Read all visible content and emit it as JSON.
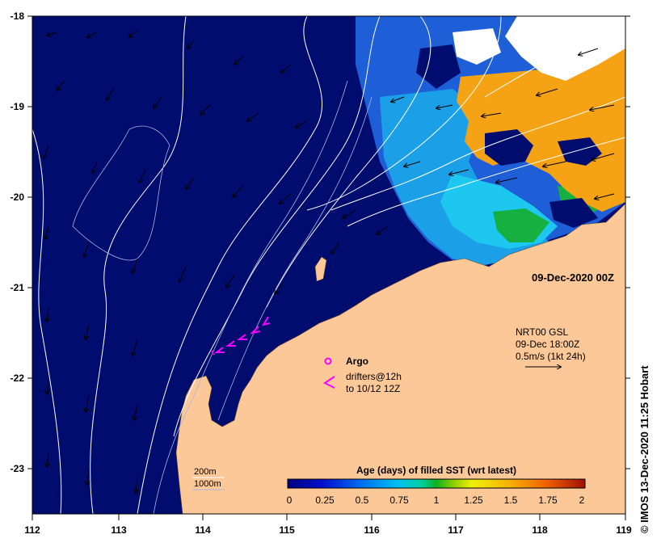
{
  "axes": {
    "x_ticks": [
      "112",
      "113",
      "114",
      "115",
      "116",
      "117",
      "118",
      "119"
    ],
    "y_ticks": [
      "-18",
      "-19",
      "-20",
      "-21",
      "-22",
      "-23"
    ],
    "lon_range": [
      112,
      119
    ],
    "lat_range": [
      -23.5,
      -18
    ]
  },
  "map_date": "09-Dec-2020 00Z",
  "current_info": {
    "line1": "NRT00 GSL",
    "line2": "09-Dec 18:00Z",
    "line3": "0.5m/s (1kt 24h)"
  },
  "legend": {
    "argo_label": "Argo",
    "drifter_line1": "drifters@12h",
    "drifter_line2": "to 10/12 12Z",
    "depth_200": "200m",
    "depth_1000": "1000m"
  },
  "colorbar": {
    "title": "Age (days) of filled SST (wrt latest)",
    "ticks": [
      "0",
      "0.25",
      "0.5",
      "0.75",
      "1",
      "1.25",
      "1.5",
      "1.75",
      "2"
    ]
  },
  "credit": "© IMOS 13-Dec-2020 11:25 Hobart",
  "colors": {
    "ocean": "#000c6e",
    "land": "#fcc898",
    "orange": "#f5a314",
    "light_blue": "#1ba0e8",
    "cyan": "#1ec7f0",
    "green": "#16b040",
    "drifter": "#ff00ff"
  }
}
